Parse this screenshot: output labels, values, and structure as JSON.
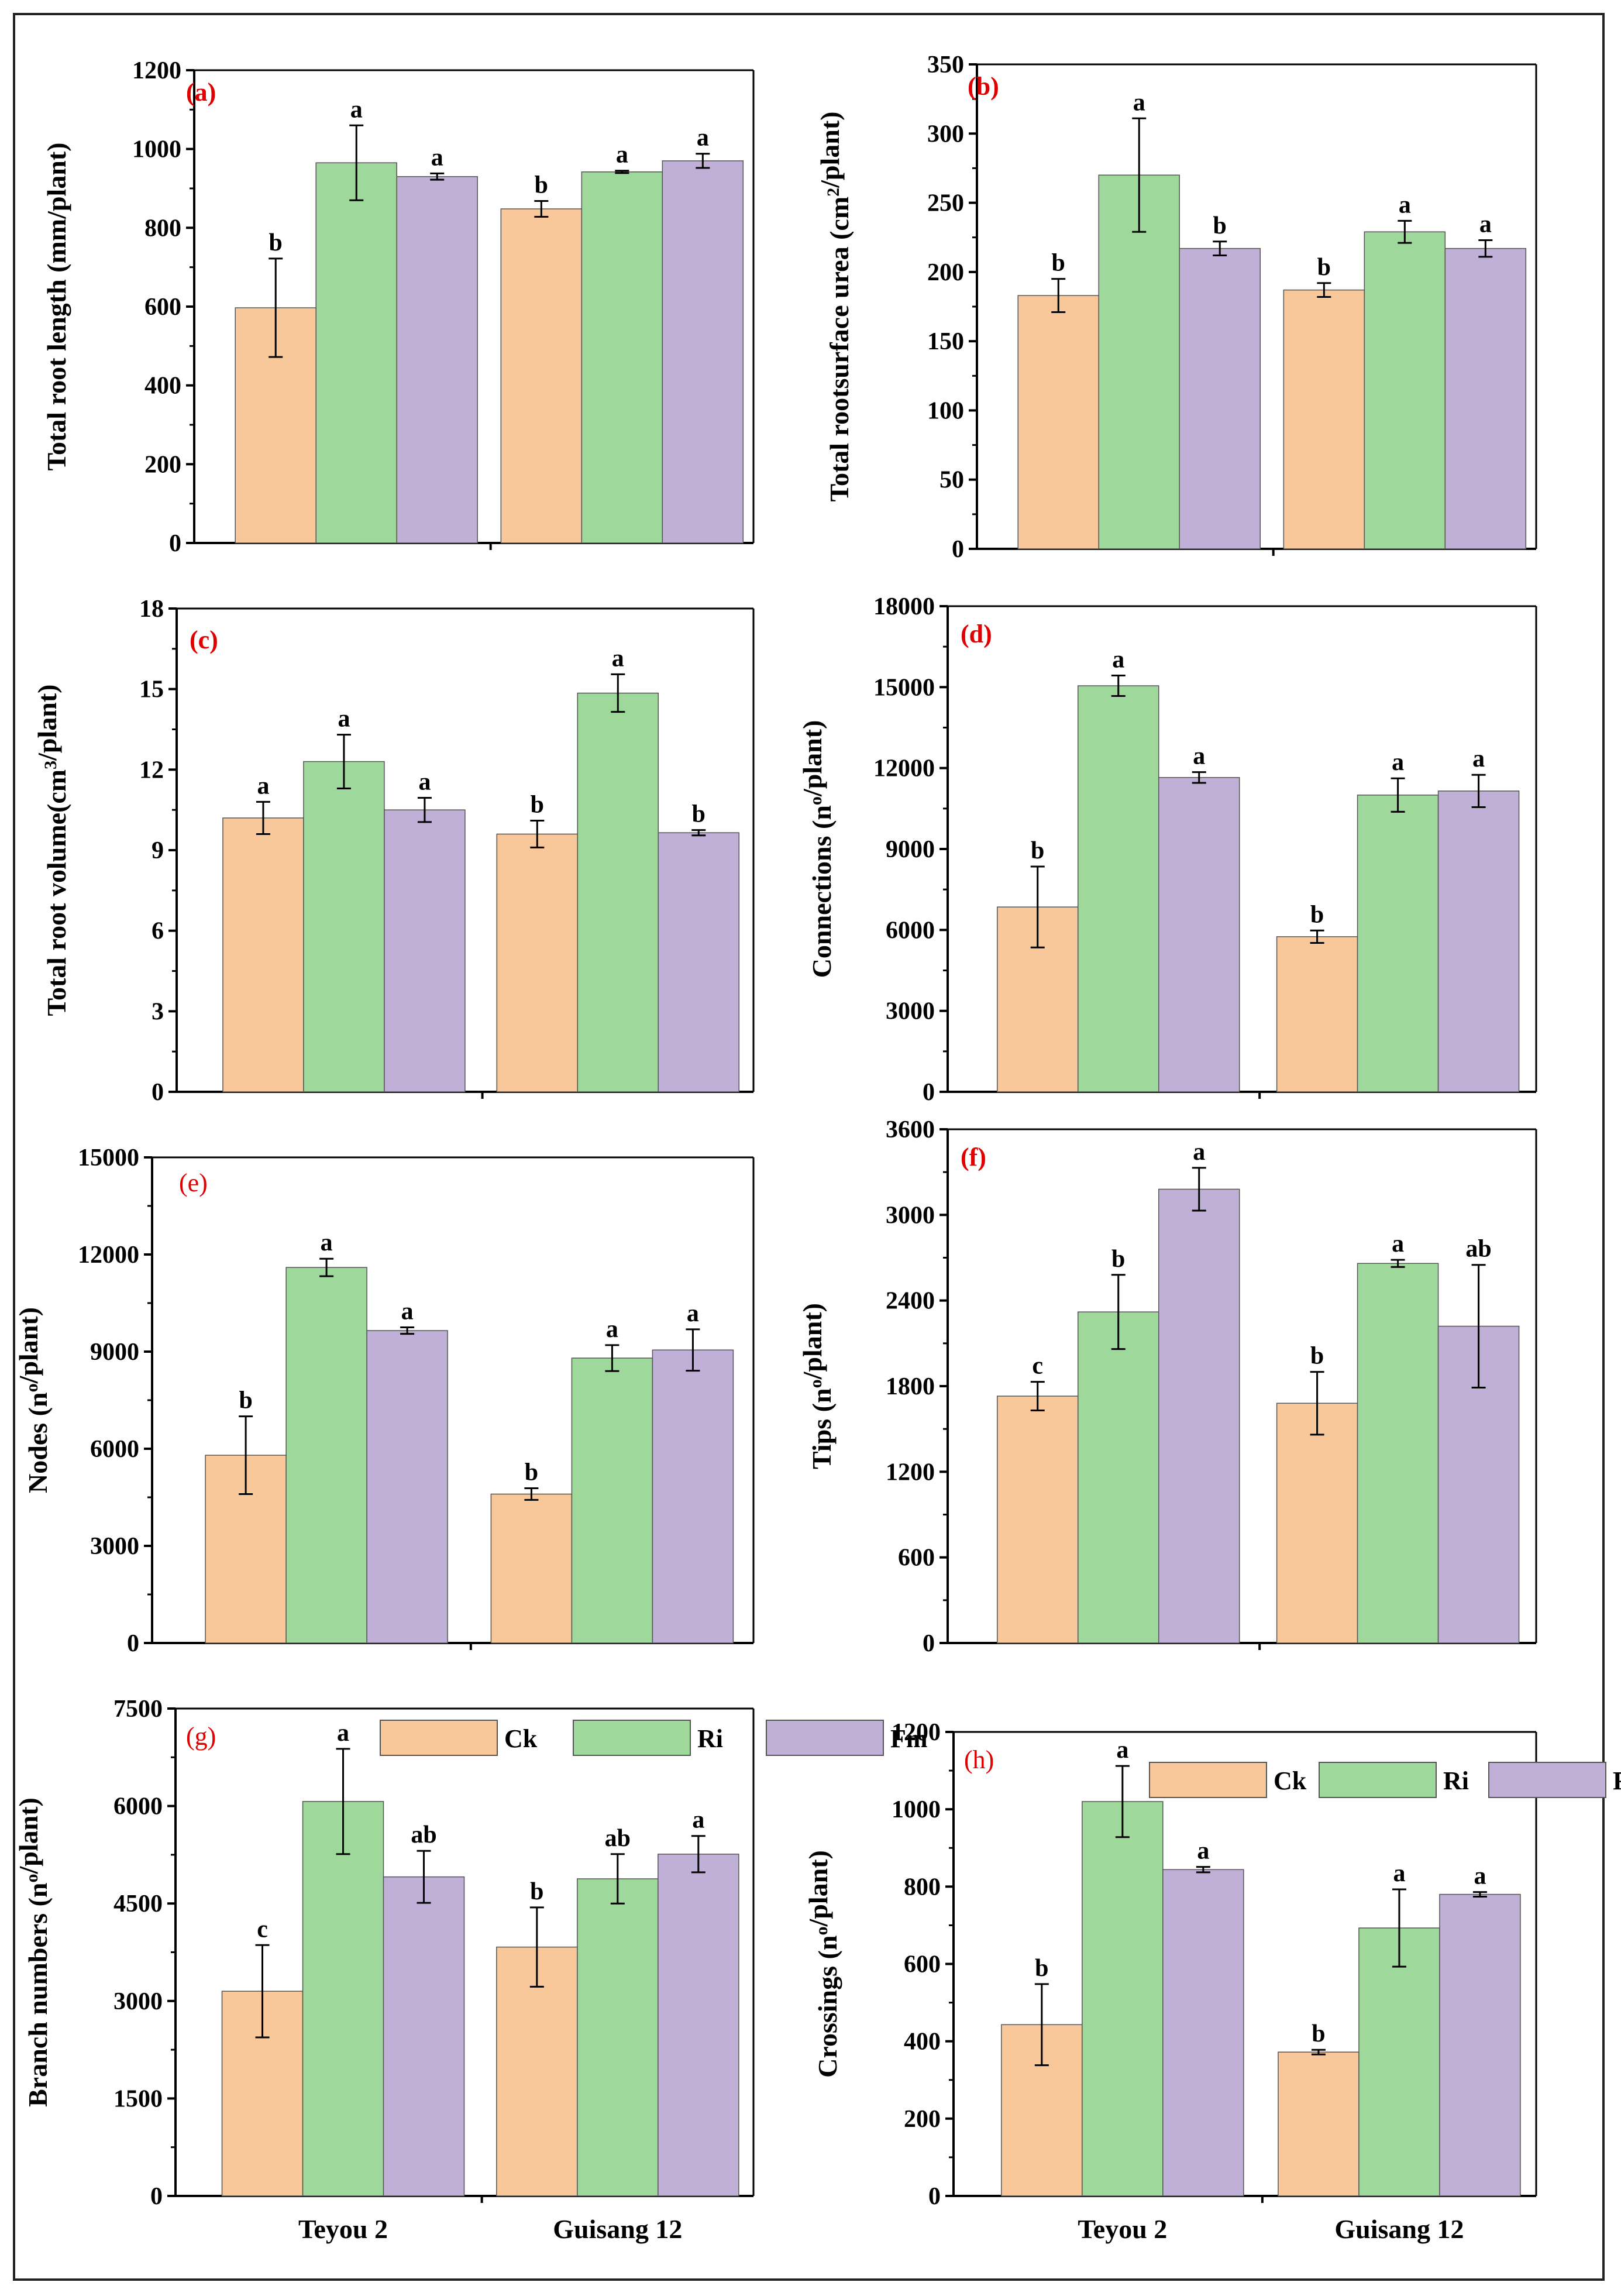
{
  "figure": {
    "categories": [
      "Teyou 2",
      "Guisang 12"
    ],
    "series_names": [
      "Ck",
      "Ri",
      "Fm"
    ],
    "colors": {
      "Ck": "#f8c89a",
      "Ri": "#9ed89a",
      "Fm": "#c0b0d8"
    },
    "panel_label_color": "#e00000"
  },
  "chart_data": [
    {
      "panel": "(a)",
      "type": "bar",
      "ylabel": "Total root length (mm/plant)",
      "ylim": [
        0,
        1200
      ],
      "ytick_step": 200,
      "yticks": [
        "0",
        "200",
        "400",
        "600",
        "800",
        "1000",
        "1200"
      ],
      "categories": [
        "Teyou 2",
        "Guisang 12"
      ],
      "series": [
        {
          "name": "Ck",
          "values": [
            597,
            848
          ],
          "errors": [
            125,
            20
          ],
          "letters": [
            "b",
            "b"
          ]
        },
        {
          "name": "Ri",
          "values": [
            965,
            942
          ],
          "errors": [
            95,
            3
          ],
          "letters": [
            "a",
            "a"
          ]
        },
        {
          "name": "Fm",
          "values": [
            930,
            970
          ],
          "errors": [
            8,
            18
          ],
          "letters": [
            "a",
            "a"
          ]
        }
      ],
      "legend": false
    },
    {
      "panel": "(b)",
      "type": "bar",
      "ylabel": "Total rootsurface urea (cm²/plant)",
      "ylim": [
        0,
        350
      ],
      "ytick_step": 50,
      "yticks": [
        "0",
        "50",
        "100",
        "150",
        "200",
        "250",
        "300",
        "350"
      ],
      "categories": [
        "Teyou 2",
        "Guisang 12"
      ],
      "series": [
        {
          "name": "Ck",
          "values": [
            183,
            187
          ],
          "errors": [
            12,
            5
          ],
          "letters": [
            "b",
            "b"
          ]
        },
        {
          "name": "Ri",
          "values": [
            270,
            229
          ],
          "errors": [
            41,
            8
          ],
          "letters": [
            "a",
            "a"
          ]
        },
        {
          "name": "Fm",
          "values": [
            217,
            217
          ],
          "errors": [
            5,
            6
          ],
          "letters": [
            "b",
            "a"
          ]
        }
      ],
      "legend": false
    },
    {
      "panel": "(c)",
      "type": "bar",
      "ylabel": "Total root volume(cm³/plant)",
      "ylim": [
        0,
        18
      ],
      "ytick_step": 3,
      "yticks": [
        "0",
        "3",
        "6",
        "9",
        "12",
        "15",
        "18"
      ],
      "categories": [
        "Teyou 2",
        "Guisang 12"
      ],
      "series": [
        {
          "name": "Ck",
          "values": [
            10.2,
            9.6
          ],
          "errors": [
            0.6,
            0.5
          ],
          "letters": [
            "a",
            "b"
          ]
        },
        {
          "name": "Ri",
          "values": [
            12.3,
            14.85
          ],
          "errors": [
            1.0,
            0.7
          ],
          "letters": [
            "a",
            "a"
          ]
        },
        {
          "name": "Fm",
          "values": [
            10.5,
            9.65
          ],
          "errors": [
            0.45,
            0.1
          ],
          "letters": [
            "a",
            "b"
          ]
        }
      ],
      "legend": false
    },
    {
      "panel": "(d)",
      "type": "bar",
      "ylabel": "Connections (nº/plant)",
      "ylim": [
        0,
        18000
      ],
      "ytick_step": 3000,
      "yticks": [
        "0",
        "3000",
        "6000",
        "9000",
        "12000",
        "15000",
        "18000"
      ],
      "categories": [
        "Teyou 2",
        "Guisang 12"
      ],
      "series": [
        {
          "name": "Ck",
          "values": [
            6850,
            5750
          ],
          "errors": [
            1500,
            230
          ],
          "letters": [
            "b",
            "b"
          ]
        },
        {
          "name": "Ri",
          "values": [
            15050,
            11000
          ],
          "errors": [
            380,
            620
          ],
          "letters": [
            "a",
            "a"
          ]
        },
        {
          "name": "Fm",
          "values": [
            11650,
            11150
          ],
          "errors": [
            200,
            600
          ],
          "letters": [
            "a",
            "a"
          ]
        }
      ],
      "legend": false
    },
    {
      "panel": "(e)",
      "type": "bar",
      "ylabel": "Nodes (nº/plant)",
      "ylim": [
        0,
        15000
      ],
      "ytick_step": 3000,
      "yticks": [
        "0",
        "3000",
        "6000",
        "9000",
        "12000",
        "15000"
      ],
      "categories": [
        "Teyou 2",
        "Guisang 12"
      ],
      "series": [
        {
          "name": "Ck",
          "values": [
            5800,
            4600
          ],
          "errors": [
            1200,
            180
          ],
          "letters": [
            "b",
            "b"
          ]
        },
        {
          "name": "Ri",
          "values": [
            11600,
            8800
          ],
          "errors": [
            270,
            400
          ],
          "letters": [
            "a",
            "a"
          ]
        },
        {
          "name": "Fm",
          "values": [
            9650,
            9050
          ],
          "errors": [
            100,
            640
          ],
          "letters": [
            "a",
            "a"
          ]
        }
      ],
      "legend": false
    },
    {
      "panel": "(f)",
      "type": "bar",
      "ylabel": "Tips (nº/plant)",
      "ylim": [
        0,
        3600
      ],
      "ytick_step": 600,
      "yticks": [
        "0",
        "600",
        "1200",
        "1800",
        "2400",
        "3000",
        "3600"
      ],
      "categories": [
        "Teyou 2",
        "Guisang 12"
      ],
      "series": [
        {
          "name": "Ck",
          "values": [
            1730,
            1680
          ],
          "errors": [
            100,
            220
          ],
          "letters": [
            "c",
            "b"
          ]
        },
        {
          "name": "Ri",
          "values": [
            2320,
            2660
          ],
          "errors": [
            260,
            25
          ],
          "letters": [
            "b",
            "a"
          ]
        },
        {
          "name": "Fm",
          "values": [
            3180,
            2220
          ],
          "errors": [
            150,
            430
          ],
          "letters": [
            "a",
            "ab"
          ]
        }
      ],
      "legend": false
    },
    {
      "panel": "(g)",
      "type": "bar",
      "ylabel": "Branch numbers (nº/plant)",
      "ylim": [
        0,
        7500
      ],
      "ytick_step": 1500,
      "yticks": [
        "0",
        "1500",
        "3000",
        "4500",
        "6000",
        "7500"
      ],
      "categories": [
        "Teyou 2",
        "Guisang 12"
      ],
      "series": [
        {
          "name": "Ck",
          "values": [
            3150,
            3830
          ],
          "errors": [
            710,
            610
          ],
          "letters": [
            "c",
            "b"
          ]
        },
        {
          "name": "Ri",
          "values": [
            6070,
            4880
          ],
          "errors": [
            810,
            380
          ],
          "letters": [
            "a",
            "ab"
          ]
        },
        {
          "name": "Fm",
          "values": [
            4910,
            5260
          ],
          "errors": [
            400,
            280
          ],
          "letters": [
            "ab",
            "a"
          ]
        }
      ],
      "legend": true,
      "legend_position": "top-right"
    },
    {
      "panel": "(h)",
      "type": "bar",
      "ylabel": "Crossings (nº/plant)",
      "ylim": [
        0,
        1200
      ],
      "ytick_step": 200,
      "yticks": [
        "0",
        "200",
        "400",
        "600",
        "800",
        "1000",
        "1200"
      ],
      "categories": [
        "Teyou 2",
        "Guisang 12"
      ],
      "series": [
        {
          "name": "Ck",
          "values": [
            443,
            372
          ],
          "errors": [
            105,
            6
          ],
          "letters": [
            "b",
            "b"
          ]
        },
        {
          "name": "Ri",
          "values": [
            1020,
            693
          ],
          "errors": [
            92,
            100
          ],
          "letters": [
            "a",
            "a"
          ]
        },
        {
          "name": "Fm",
          "values": [
            844,
            780
          ],
          "errors": [
            7,
            6
          ],
          "letters": [
            "a",
            "a"
          ]
        }
      ],
      "legend": true,
      "legend_position": "top-right"
    }
  ]
}
